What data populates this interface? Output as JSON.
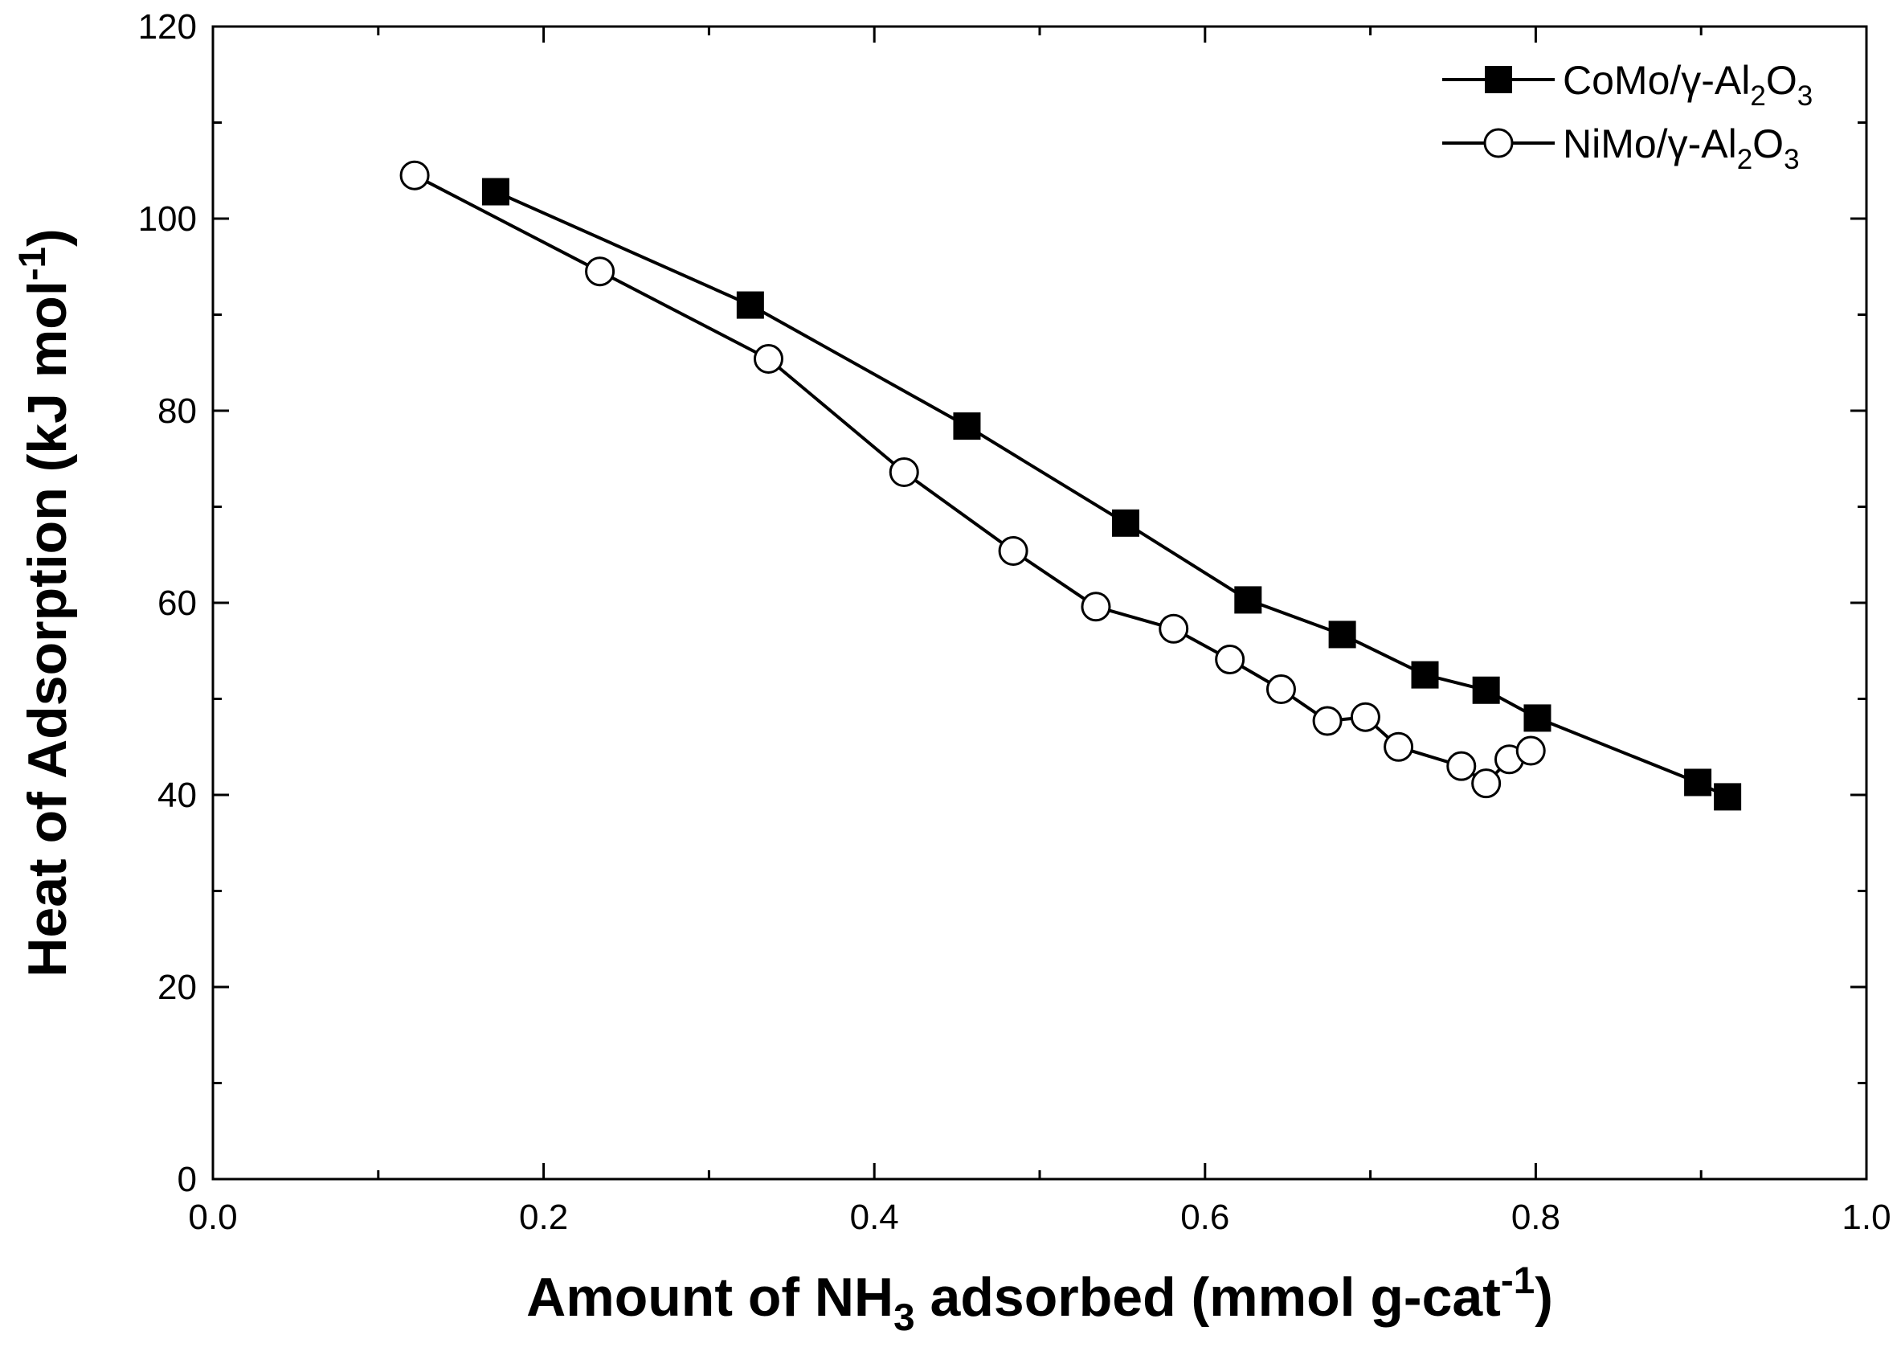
{
  "chart_data": {
    "type": "line",
    "xlabel_parts": [
      "Amount of NH",
      "3",
      " adsorbed (mmol g-cat",
      "-1",
      ")"
    ],
    "ylabel_parts": [
      "Heat of Adsorption (kJ mol",
      "-1",
      ")"
    ],
    "xlim": [
      0.0,
      1.0
    ],
    "ylim": [
      0,
      120
    ],
    "x_ticks": [
      "0.0",
      "0.2",
      "0.4",
      "0.6",
      "0.8",
      "1.0"
    ],
    "y_ticks": [
      "0",
      "20",
      "40",
      "60",
      "80",
      "100",
      "120"
    ],
    "legend_position": "top-right",
    "series": [
      {
        "name": "CoMo/γ-Al2O3",
        "name_parts": [
          "CoMo/γ-Al",
          "2",
          "O",
          "3"
        ],
        "marker": "filled-square",
        "color": "#000000",
        "x": [
          0.171,
          0.325,
          0.456,
          0.552,
          0.626,
          0.683,
          0.733,
          0.77,
          0.801,
          0.898,
          0.916
        ],
        "y": [
          102.8,
          91.0,
          78.4,
          68.3,
          60.3,
          56.7,
          52.5,
          50.9,
          48.0,
          41.3,
          39.8
        ]
      },
      {
        "name": "NiMo/γ-Al2O3",
        "name_parts": [
          "NiMo/γ-Al",
          "2",
          "O",
          "3"
        ],
        "marker": "open-circle",
        "color": "#000000",
        "x": [
          0.122,
          0.234,
          0.336,
          0.418,
          0.484,
          0.534,
          0.581,
          0.615,
          0.646,
          0.674,
          0.697,
          0.717,
          0.755,
          0.77,
          0.784,
          0.797
        ],
        "y": [
          104.5,
          94.5,
          85.4,
          73.6,
          65.4,
          59.6,
          57.3,
          54.1,
          51.0,
          47.7,
          48.1,
          45.0,
          43.0,
          41.2,
          43.7,
          44.6
        ]
      }
    ]
  }
}
